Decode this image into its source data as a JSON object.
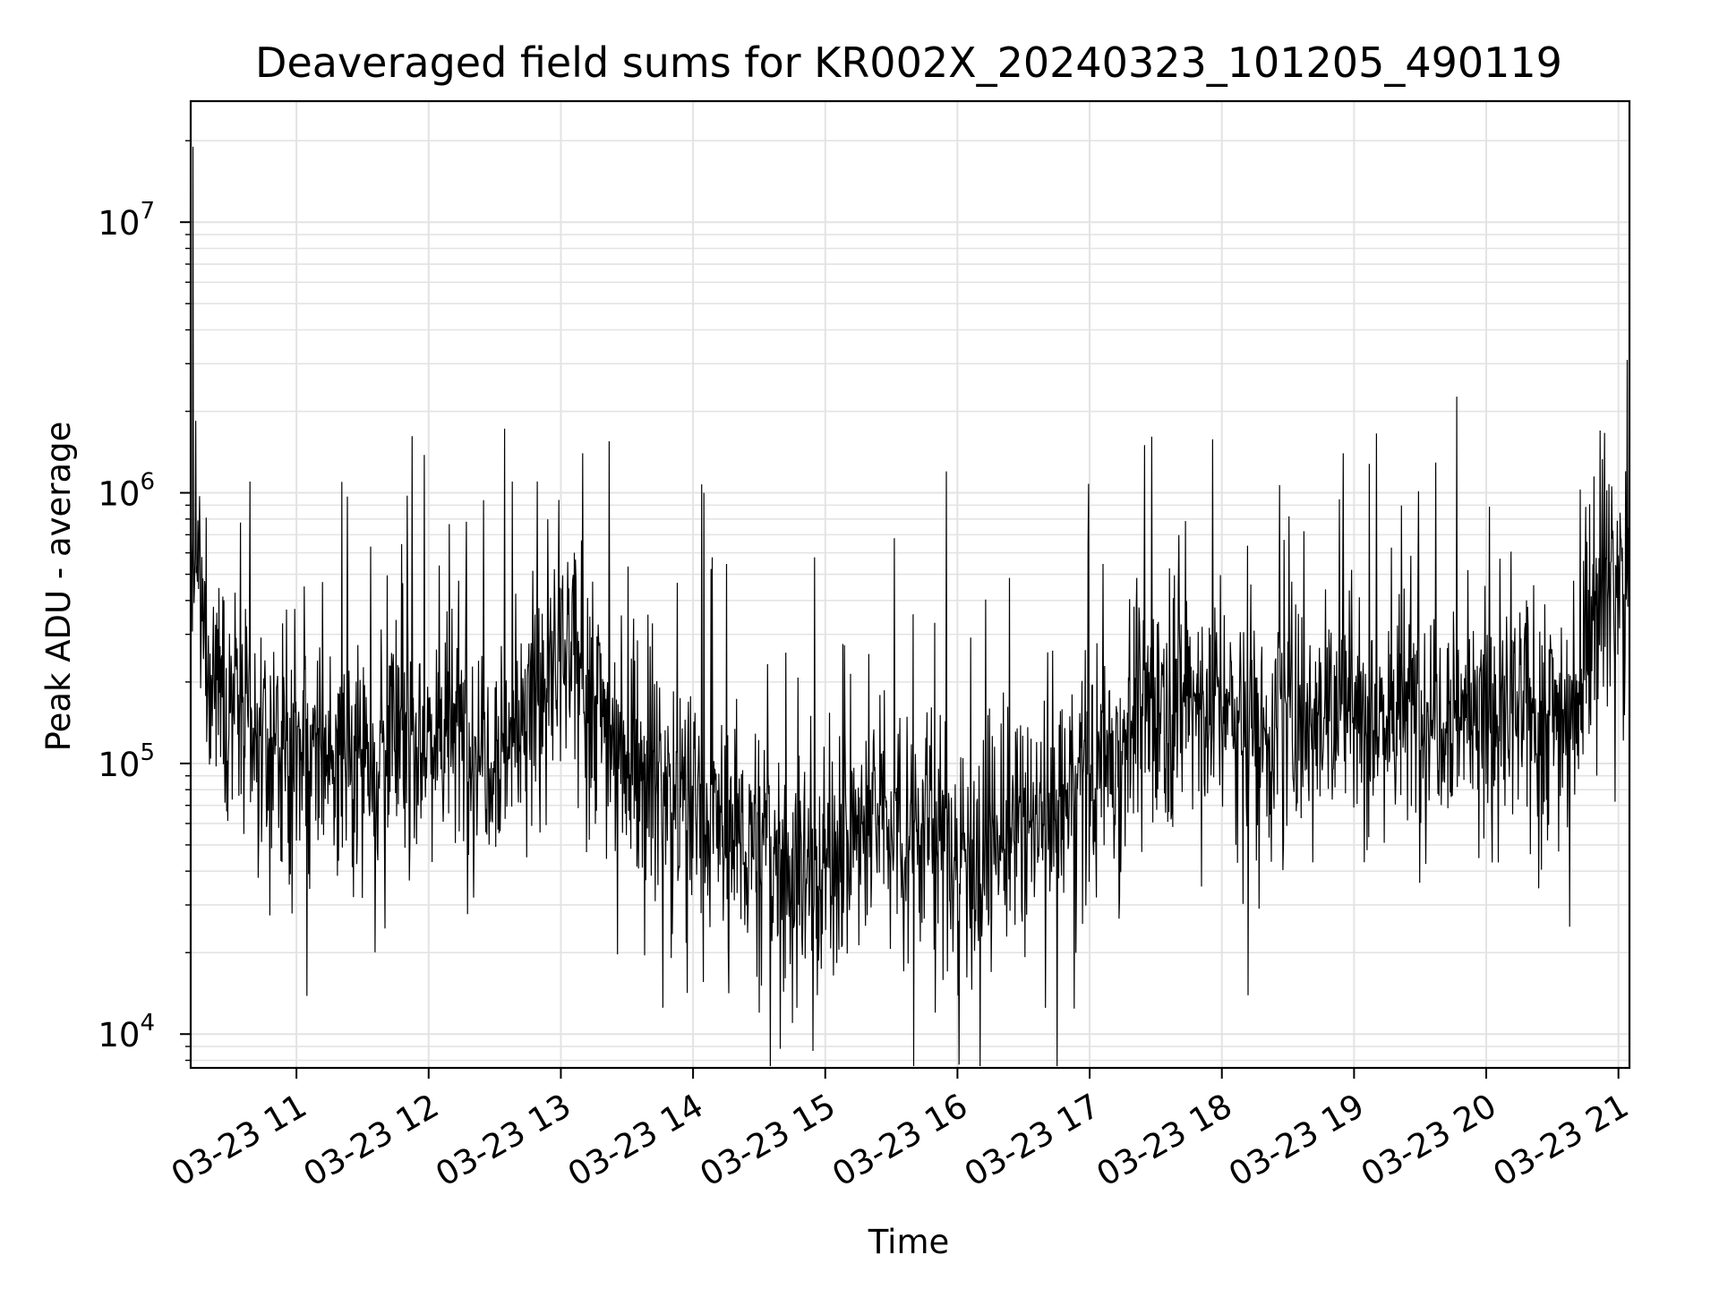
{
  "chart_data": {
    "type": "line",
    "title": "Deaveraged field sums for KR002X_20240323_101205_490119",
    "xlabel": "Time",
    "ylabel": "Peak ADU - average",
    "x_tick_labels": [
      "03-23 11",
      "03-23 12",
      "03-23 13",
      "03-23 14",
      "03-23 15",
      "03-23 16",
      "03-23 17",
      "03-23 18",
      "03-23 19",
      "03-23 20",
      "03-23 21"
    ],
    "y_tick_labels": [
      {
        "base": "10",
        "exp": "4"
      },
      {
        "base": "10",
        "exp": "5"
      },
      {
        "base": "10",
        "exp": "6"
      },
      {
        "base": "10",
        "exp": "7"
      }
    ],
    "y_scale": "log",
    "ylim": [
      7500,
      28000000
    ],
    "xlim": [
      "2024-03-23 10:12",
      "2024-03-23 21:05"
    ],
    "grid": true,
    "line_color": "#000000",
    "series": [
      {
        "x": [
          "2024-03-23 10:12",
          "2024-03-23 10:20",
          "2024-03-23 10:30",
          "2024-03-23 10:40",
          "2024-03-23 10:50",
          "2024-03-23 11:00",
          "2024-03-23 11:10",
          "2024-03-23 11:20",
          "2024-03-23 11:30",
          "2024-03-23 11:40",
          "2024-03-23 11:50",
          "2024-03-23 12:00",
          "2024-03-23 12:10",
          "2024-03-23 12:20",
          "2024-03-23 12:30",
          "2024-03-23 12:40",
          "2024-03-23 12:50",
          "2024-03-23 13:00",
          "2024-03-23 13:10",
          "2024-03-23 13:20",
          "2024-03-23 13:30",
          "2024-03-23 13:40",
          "2024-03-23 13:50",
          "2024-03-23 14:00",
          "2024-03-23 14:10",
          "2024-03-23 14:20",
          "2024-03-23 14:30",
          "2024-03-23 14:40",
          "2024-03-23 14:50",
          "2024-03-23 15:00",
          "2024-03-23 15:10",
          "2024-03-23 15:20",
          "2024-03-23 15:30",
          "2024-03-23 15:40",
          "2024-03-23 15:50",
          "2024-03-23 16:00",
          "2024-03-23 16:10",
          "2024-03-23 16:20",
          "2024-03-23 16:30",
          "2024-03-23 16:40",
          "2024-03-23 16:50",
          "2024-03-23 17:00",
          "2024-03-23 17:10",
          "2024-03-23 17:20",
          "2024-03-23 17:30",
          "2024-03-23 17:40",
          "2024-03-23 17:50",
          "2024-03-23 18:00",
          "2024-03-23 18:10",
          "2024-03-23 18:20",
          "2024-03-23 18:30",
          "2024-03-23 18:40",
          "2024-03-23 18:50",
          "2024-03-23 19:00",
          "2024-03-23 19:10",
          "2024-03-23 19:20",
          "2024-03-23 19:30",
          "2024-03-23 19:40",
          "2024-03-23 19:50",
          "2024-03-23 20:00",
          "2024-03-23 20:10",
          "2024-03-23 20:20",
          "2024-03-23 20:30",
          "2024-03-23 20:40",
          "2024-03-23 20:50",
          "2024-03-23 21:00",
          "2024-03-23 21:05"
        ],
        "y": [
          600000,
          250000,
          180000,
          120000,
          110000,
          100000,
          105000,
          110000,
          115000,
          120000,
          125000,
          130000,
          130000,
          125000,
          120000,
          130000,
          190000,
          230000,
          220000,
          150000,
          110000,
          95000,
          80000,
          70000,
          60000,
          55000,
          50000,
          45000,
          40000,
          42000,
          50000,
          60000,
          65000,
          60000,
          55000,
          50000,
          48000,
          52000,
          55000,
          65000,
          75000,
          90000,
          110000,
          140000,
          170000,
          185000,
          175000,
          160000,
          140000,
          135000,
          145000,
          165000,
          170000,
          160000,
          155000,
          150000,
          165000,
          170000,
          160000,
          150000,
          145000,
          150000,
          155000,
          160000,
          450000,
          500000,
          520000
        ],
        "spikes": [
          {
            "x": "2024-03-23 10:13",
            "y": 19000000
          },
          {
            "x": "2024-03-23 10:39",
            "y": 1100000
          },
          {
            "x": "2024-03-23 12:38",
            "y": 1100000
          },
          {
            "x": "2024-03-23 13:10",
            "y": 1400000
          },
          {
            "x": "2024-03-23 13:22",
            "y": 1550000
          },
          {
            "x": "2024-03-23 14:05",
            "y": 1000000
          },
          {
            "x": "2024-03-23 15:55",
            "y": 1200000
          },
          {
            "x": "2024-03-23 17:25",
            "y": 1500000
          },
          {
            "x": "2024-03-23 18:55",
            "y": 1400000
          },
          {
            "x": "2024-03-23 20:49",
            "y": 1150000
          },
          {
            "x": "2024-03-23 21:04",
            "y": 3100000
          }
        ],
        "dips": [
          {
            "x": "2024-03-23 14:45",
            "y": 11000
          },
          {
            "x": "2024-03-23 15:50",
            "y": 12000
          },
          {
            "x": "2024-03-23 16:40",
            "y": 12500
          },
          {
            "x": "2024-03-23 14:30",
            "y": 12000
          }
        ]
      }
    ]
  }
}
